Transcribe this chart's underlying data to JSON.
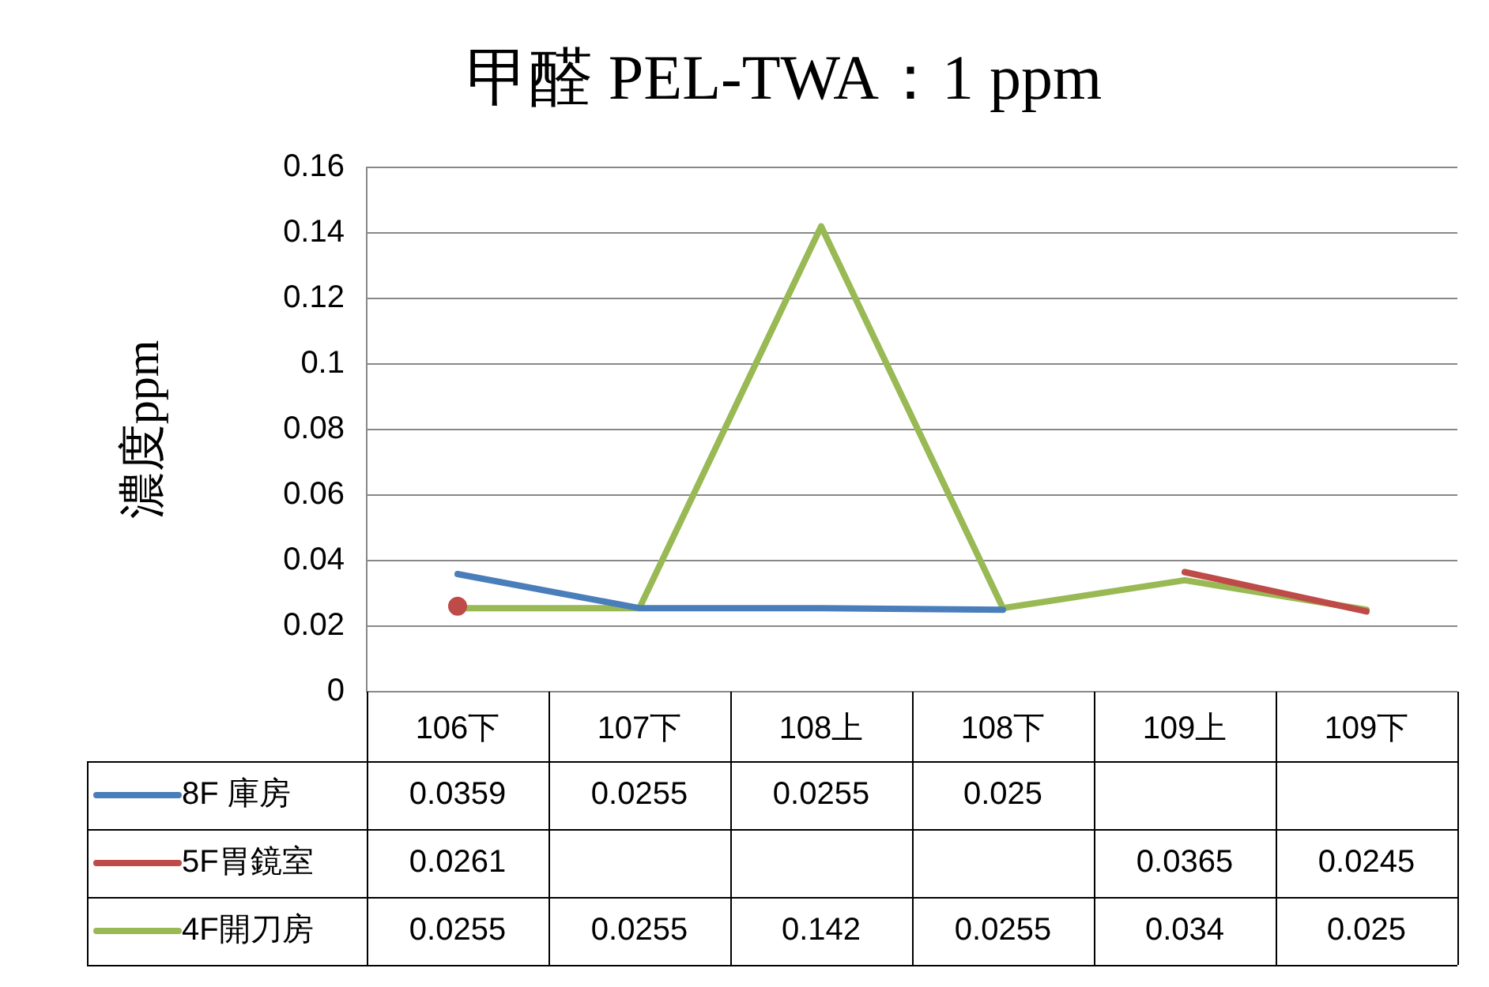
{
  "chart_data": {
    "type": "line",
    "title": "甲醛 PEL-TWA：1 ppm",
    "ylabel": "濃度ppm",
    "categories": [
      "106下",
      "107下",
      "108上",
      "108下",
      "109上",
      "109下"
    ],
    "series": [
      {
        "name": "8F 庫房",
        "color": "#4a7ebb",
        "values": [
          0.0359,
          0.0255,
          0.0255,
          0.025,
          null,
          null
        ]
      },
      {
        "name": "5F胃鏡室",
        "color": "#be4b48",
        "values": [
          0.0261,
          null,
          null,
          null,
          0.0365,
          0.0245
        ]
      },
      {
        "name": "4F開刀房",
        "color": "#98b954",
        "values": [
          0.0255,
          0.0255,
          0.142,
          0.0255,
          0.034,
          0.025
        ]
      }
    ],
    "ylim": [
      0,
      0.16
    ],
    "yticks": [
      0,
      0.02,
      0.04,
      0.06,
      0.08,
      0.1,
      0.12,
      0.14,
      0.16
    ],
    "grid": "y",
    "legend": "bottom",
    "data_labels": true,
    "marker": "none",
    "line_style": "solid"
  }
}
